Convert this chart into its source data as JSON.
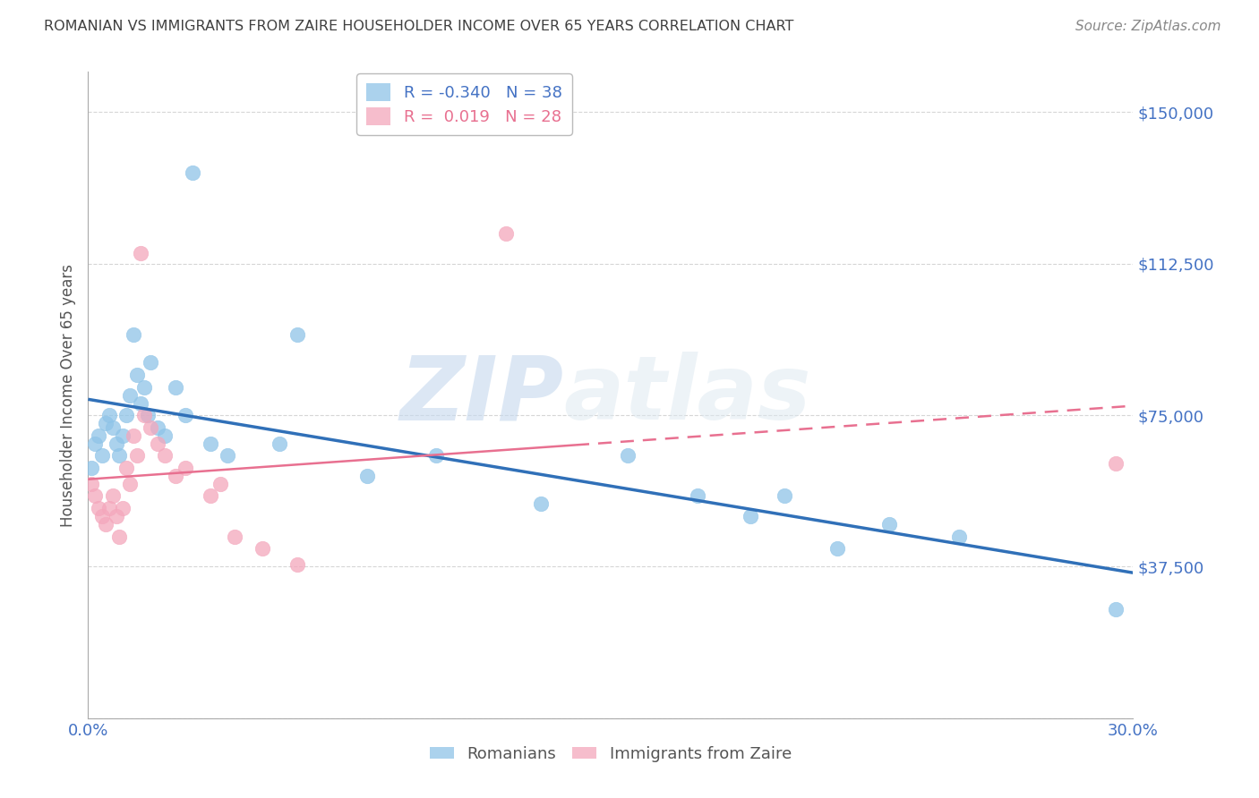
{
  "title": "ROMANIAN VS IMMIGRANTS FROM ZAIRE HOUSEHOLDER INCOME OVER 65 YEARS CORRELATION CHART",
  "source": "Source: ZipAtlas.com",
  "ylabel": "Householder Income Over 65 years",
  "xlim": [
    0.0,
    0.3
  ],
  "ylim": [
    0,
    160000
  ],
  "yticks": [
    0,
    37500,
    75000,
    112500,
    150000
  ],
  "ytick_labels": [
    "",
    "$37,500",
    "$75,000",
    "$112,500",
    "$150,000"
  ],
  "xticks": [
    0.0,
    0.05,
    0.1,
    0.15,
    0.2,
    0.25,
    0.3
  ],
  "xtick_labels": [
    "0.0%",
    "",
    "",
    "",
    "",
    "",
    "30.0%"
  ],
  "watermark_zip": "ZIP",
  "watermark_atlas": "atlas",
  "legend_romanian_R": "-0.340",
  "legend_romanian_N": "38",
  "legend_zaire_R": "0.019",
  "legend_zaire_N": "28",
  "romanian_color": "#8fc4e8",
  "zaire_color": "#f4a7bc",
  "romanian_line_color": "#3070b8",
  "zaire_line_color": "#e87090",
  "axis_label_color": "#4472c4",
  "grid_color": "#cccccc",
  "title_color": "#404040",
  "romanian_x": [
    0.001,
    0.002,
    0.003,
    0.004,
    0.005,
    0.006,
    0.007,
    0.008,
    0.009,
    0.01,
    0.011,
    0.012,
    0.013,
    0.014,
    0.015,
    0.016,
    0.017,
    0.018,
    0.02,
    0.022,
    0.025,
    0.028,
    0.03,
    0.035,
    0.04,
    0.055,
    0.06,
    0.08,
    0.1,
    0.13,
    0.155,
    0.175,
    0.19,
    0.2,
    0.215,
    0.23,
    0.25,
    0.295
  ],
  "romanian_y": [
    62000,
    68000,
    70000,
    65000,
    73000,
    75000,
    72000,
    68000,
    65000,
    70000,
    75000,
    80000,
    95000,
    85000,
    78000,
    82000,
    75000,
    88000,
    72000,
    70000,
    82000,
    75000,
    135000,
    68000,
    65000,
    68000,
    95000,
    60000,
    65000,
    53000,
    65000,
    55000,
    50000,
    55000,
    42000,
    48000,
    45000,
    27000
  ],
  "zaire_x": [
    0.001,
    0.002,
    0.003,
    0.004,
    0.005,
    0.006,
    0.007,
    0.008,
    0.009,
    0.01,
    0.011,
    0.012,
    0.013,
    0.014,
    0.015,
    0.016,
    0.018,
    0.02,
    0.022,
    0.025,
    0.028,
    0.035,
    0.038,
    0.042,
    0.05,
    0.06,
    0.12,
    0.295
  ],
  "zaire_y": [
    58000,
    55000,
    52000,
    50000,
    48000,
    52000,
    55000,
    50000,
    45000,
    52000,
    62000,
    58000,
    70000,
    65000,
    115000,
    75000,
    72000,
    68000,
    65000,
    60000,
    62000,
    55000,
    58000,
    45000,
    42000,
    38000,
    120000,
    63000
  ]
}
